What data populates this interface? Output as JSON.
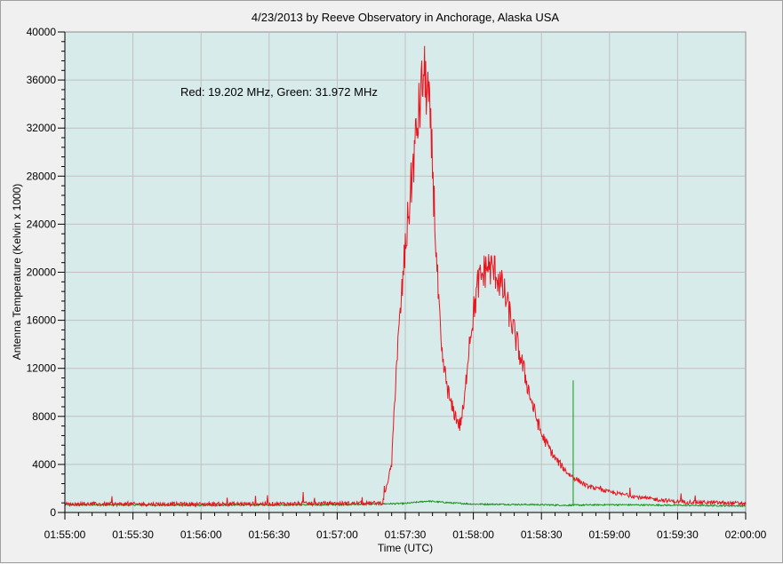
{
  "chart_data": {
    "type": "line",
    "title": "4/23/2013  by  Reeve Observatory  in  Anchorage, Alaska  USA",
    "xlabel": "Time (UTC)",
    "ylabel": "Antenna Temperature (Kelvin x 1000)",
    "annotation": "Red: 19.202 MHz, Green: 31.972 MHz",
    "xlim": [
      "01:55:00",
      "02:00:00"
    ],
    "ylim": [
      0,
      40000
    ],
    "x_ticks": [
      "01:55:00",
      "01:55:30",
      "01:56:00",
      "01:56:30",
      "01:57:00",
      "01:57:30",
      "01:58:00",
      "01:58:30",
      "01:59:00",
      "01:59:30",
      "02:00:00"
    ],
    "y_ticks": [
      "0",
      "4000",
      "8000",
      "12000",
      "16000",
      "20000",
      "24000",
      "28000",
      "32000",
      "36000",
      "40000"
    ],
    "grid": true,
    "colors": {
      "plot_bg": "#d7ebeb",
      "grid": "#c0c0c0",
      "red": "#e8141e",
      "green": "#189018"
    },
    "series": [
      {
        "name": "Red: 19.202 MHz",
        "color": "#e8141e",
        "x": [
          "01:55:00",
          "01:56:00",
          "01:57:00",
          "01:57:20",
          "01:57:24",
          "01:57:26",
          "01:57:28",
          "01:57:30",
          "01:57:34",
          "01:57:38",
          "01:57:40",
          "01:57:42",
          "01:57:44",
          "01:57:46",
          "01:57:50",
          "01:57:54",
          "01:57:56",
          "01:57:58",
          "01:58:02",
          "01:58:06",
          "01:58:10",
          "01:58:14",
          "01:58:18",
          "01:58:22",
          "01:58:26",
          "01:58:30",
          "01:58:36",
          "01:58:42",
          "01:58:50",
          "01:59:00",
          "01:59:15",
          "01:59:30",
          "02:00:00"
        ],
        "y": [
          700,
          700,
          750,
          800,
          4000,
          12000,
          17000,
          22000,
          30000,
          36500,
          35000,
          29000,
          20000,
          13000,
          9000,
          7200,
          9000,
          14000,
          19000,
          20500,
          20000,
          18000,
          15000,
          12000,
          9000,
          6500,
          4500,
          3200,
          2200,
          1700,
          1200,
          900,
          750
        ]
      },
      {
        "name": "Green: 31.972 MHz",
        "color": "#189018",
        "x": [
          "01:55:00",
          "01:56:00",
          "01:57:00",
          "01:57:30",
          "01:57:40",
          "01:57:50",
          "01:58:00",
          "01:58:30",
          "01:58:40",
          "01:59:00",
          "01:59:30",
          "02:00:00"
        ],
        "y": [
          650,
          600,
          650,
          750,
          950,
          800,
          700,
          650,
          600,
          650,
          600,
          550
        ],
        "spike": {
          "x": "01:58:44",
          "y": 11000
        }
      }
    ]
  }
}
